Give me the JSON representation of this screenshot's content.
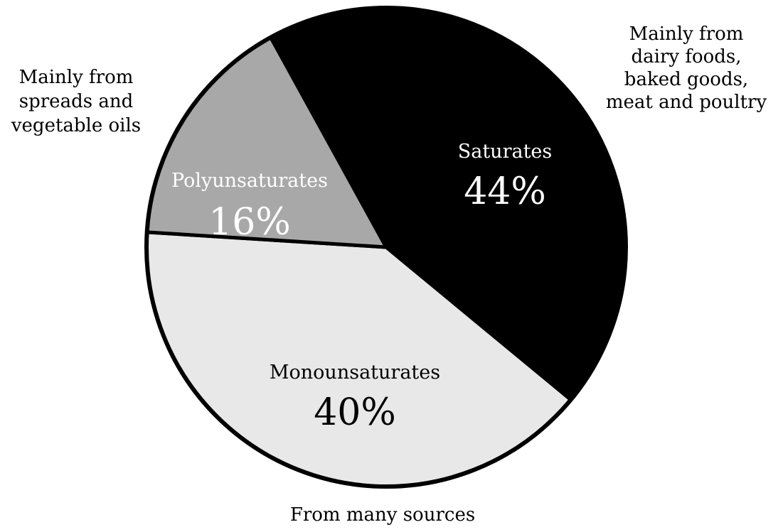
{
  "chart_data": {
    "type": "pie",
    "title": "",
    "slices": [
      {
        "label": "Saturates",
        "value": 44,
        "value_label": "44%",
        "color": "#000000",
        "text_color": "#ffffff"
      },
      {
        "label": "Monounsaturates",
        "value": 40,
        "value_label": "40%",
        "color": "#e8e8e8",
        "text_color": "#000000"
      },
      {
        "label": "Polyunsaturates",
        "value": 16,
        "value_label": "16%",
        "color": "#a8a8a8",
        "text_color": "#ffffff"
      }
    ],
    "annotations": {
      "saturates": [
        "Mainly from",
        "dairy foods,",
        "baked goods,",
        "meat and poultry"
      ],
      "polyunsaturates": [
        "Mainly from",
        "spreads and",
        "vegetable oils"
      ],
      "monounsaturates": [
        "From many sources"
      ]
    },
    "outline_color": "#000000"
  }
}
